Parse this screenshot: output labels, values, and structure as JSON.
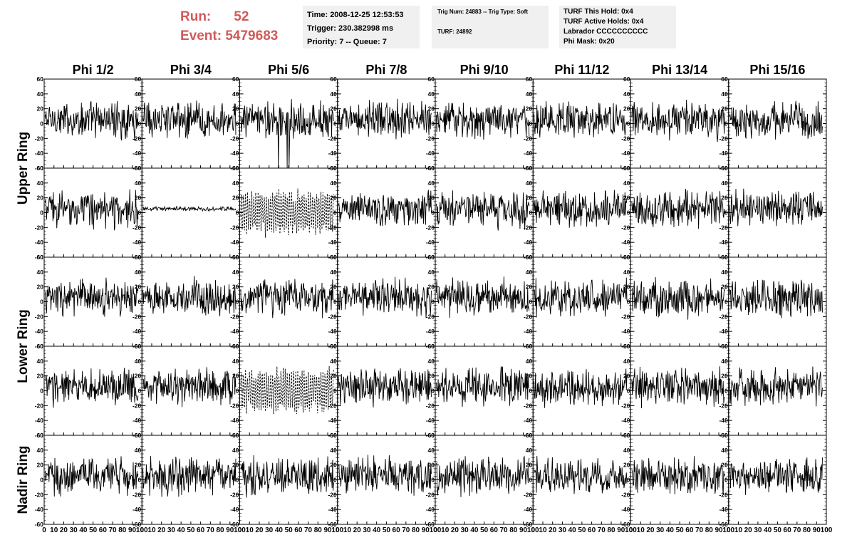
{
  "header": {
    "run_label": "Run:",
    "run_value": "52",
    "event_label": "Event:",
    "event_value": "5479683"
  },
  "info_box_1": {
    "time": "Time: 2008-12-25 12:53:53",
    "trigger": "Trigger: 230.382998 ms",
    "priority": "Priority: 7 -- Queue: 7"
  },
  "info_box_2": {
    "trig": "Trig Num: 24883 -- Trig Type: Soft",
    "turf": "TURF: 24892"
  },
  "info_box_3": {
    "hold": "TURF This Hold: 0x4",
    "active_holds": "TURF Active Holds: 0x4",
    "labrador": "Labrador CCCCCCCCCC",
    "phi_mask": "Phi Mask: 0x20"
  },
  "chart_data": {
    "type": "line",
    "columns": [
      "Phi 1/2",
      "Phi 3/4",
      "Phi 5/6",
      "Phi 7/8",
      "Phi 9/10",
      "Phi 11/12",
      "Phi 13/14",
      "Phi 15/16"
    ],
    "row_groups": [
      "Upper Ring",
      "Lower Ring",
      "Nadir Ring"
    ],
    "rows": 5,
    "xlim": [
      0,
      100
    ],
    "ylim": [
      -60,
      60
    ],
    "y_ticks": [
      -60,
      -40,
      -20,
      0,
      20,
      40,
      60
    ],
    "x_ticks": [
      0,
      10,
      20,
      30,
      40,
      50,
      60,
      70,
      80,
      90,
      100
    ],
    "samples": 96,
    "typical_amplitude": 20,
    "dashed_panels": [
      [
        1,
        2
      ],
      [
        3,
        2
      ]
    ],
    "quiet_panels": [
      [
        1,
        1
      ]
    ],
    "large_spike_panels": [
      [
        0,
        2
      ]
    ]
  }
}
